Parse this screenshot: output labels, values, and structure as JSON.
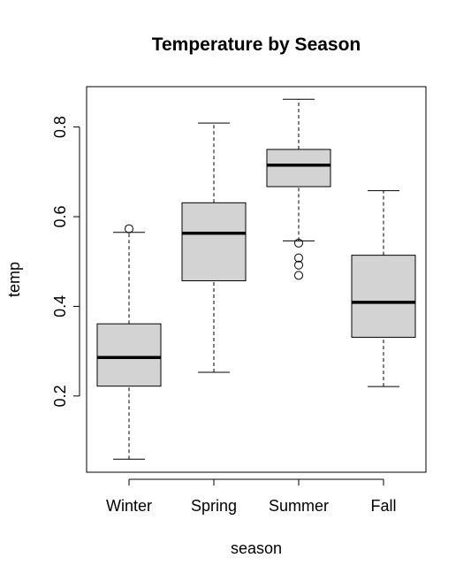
{
  "chart_data": {
    "type": "boxplot",
    "title": "Temperature by Season",
    "xlabel": "season",
    "ylabel": "temp",
    "ylim": [
      0.03,
      0.89
    ],
    "yticks": [
      0.2,
      0.4,
      0.6,
      0.8
    ],
    "ytick_labels": [
      "0.2",
      "0.4",
      "0.6",
      "0.8"
    ],
    "categories": [
      "Winter",
      "Spring",
      "Summer",
      "Fall"
    ],
    "boxes": [
      {
        "category": "Winter",
        "whisker_low": 0.059,
        "q1": 0.222,
        "median": 0.286,
        "q3": 0.361,
        "whisker_high": 0.565,
        "outliers": [
          0.573
        ]
      },
      {
        "category": "Spring",
        "whisker_low": 0.253,
        "q1": 0.457,
        "median": 0.563,
        "q3": 0.631,
        "whisker_high": 0.809,
        "outliers": []
      },
      {
        "category": "Summer",
        "whisker_low": 0.546,
        "q1": 0.667,
        "median": 0.715,
        "q3": 0.75,
        "whisker_high": 0.862,
        "outliers": [
          0.541,
          0.508,
          0.492,
          0.469
        ]
      },
      {
        "category": "Fall",
        "whisker_low": 0.221,
        "q1": 0.331,
        "median": 0.409,
        "q3": 0.514,
        "whisker_high": 0.658,
        "outliers": []
      }
    ],
    "box_fill": "#d3d3d3",
    "grid": false,
    "legend": "none"
  }
}
